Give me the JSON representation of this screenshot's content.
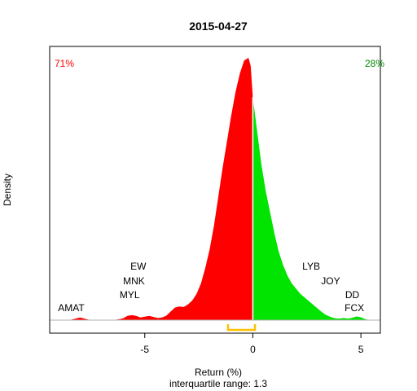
{
  "chart_data": {
    "type": "area",
    "title": "2015-04-27",
    "xlabel": "Return (%)",
    "subtitle": "interquartile range: 1.3",
    "ylabel": "Density",
    "xlim": [
      -9.4,
      5.9
    ],
    "ylim": [
      0,
      1
    ],
    "x_ticks": [
      -5,
      0,
      5
    ],
    "x_tick_labels": [
      "-5",
      "0",
      "5"
    ],
    "grid": false,
    "split_at": 0,
    "colors": {
      "negative": "#ff0000",
      "positive": "#00e400",
      "iqr": "#ffc000",
      "baseline": "#b0b0b0"
    },
    "pct_negative": "71%",
    "pct_positive": "28%",
    "iqr": [
      -1.15,
      0.1
    ],
    "density": {
      "x": [
        -8.5,
        -8.2,
        -8.0,
        -7.8,
        -7.5,
        -7.0,
        -6.5,
        -6.2,
        -6.0,
        -5.8,
        -5.6,
        -5.4,
        -5.2,
        -5.0,
        -4.8,
        -4.6,
        -4.4,
        -4.2,
        -4.0,
        -3.8,
        -3.6,
        -3.4,
        -3.2,
        -3.0,
        -2.8,
        -2.6,
        -2.4,
        -2.2,
        -2.0,
        -1.8,
        -1.6,
        -1.4,
        -1.2,
        -1.0,
        -0.8,
        -0.6,
        -0.4,
        -0.2,
        -0.1,
        0.0,
        0.2,
        0.4,
        0.6,
        0.8,
        1.0,
        1.2,
        1.4,
        1.6,
        1.8,
        2.0,
        2.2,
        2.4,
        2.6,
        2.8,
        3.0,
        3.2,
        3.4,
        3.6,
        3.8,
        4.0,
        4.2,
        4.4,
        4.6,
        4.8,
        5.0,
        5.2,
        5.4
      ],
      "y": [
        0.0,
        0.006,
        0.01,
        0.006,
        0.0,
        0.0,
        0.0,
        0.003,
        0.007,
        0.016,
        0.019,
        0.016,
        0.01,
        0.013,
        0.016,
        0.012,
        0.008,
        0.01,
        0.017,
        0.033,
        0.048,
        0.052,
        0.05,
        0.06,
        0.075,
        0.1,
        0.14,
        0.2,
        0.27,
        0.36,
        0.47,
        0.58,
        0.68,
        0.78,
        0.87,
        0.94,
        0.99,
        1.0,
        0.97,
        0.85,
        0.72,
        0.59,
        0.49,
        0.41,
        0.33,
        0.26,
        0.21,
        0.17,
        0.14,
        0.12,
        0.1,
        0.086,
        0.072,
        0.058,
        0.044,
        0.03,
        0.019,
        0.012,
        0.007,
        0.006,
        0.008,
        0.006,
        0.009,
        0.014,
        0.011,
        0.004,
        0.0
      ]
    },
    "annotations": [
      {
        "text": "AMAT",
        "x": -8.4,
        "level": 0
      },
      {
        "text": "MYL",
        "x": -5.7,
        "level": 1
      },
      {
        "text": "MNK",
        "x": -5.5,
        "level": 2
      },
      {
        "text": "EW",
        "x": -5.3,
        "level": 3
      },
      {
        "text": "LYB",
        "x": 2.7,
        "level": 3
      },
      {
        "text": "JOY",
        "x": 3.6,
        "level": 2
      },
      {
        "text": "DD",
        "x": 4.6,
        "level": 1
      },
      {
        "text": "FCX",
        "x": 4.7,
        "level": 0
      }
    ]
  }
}
